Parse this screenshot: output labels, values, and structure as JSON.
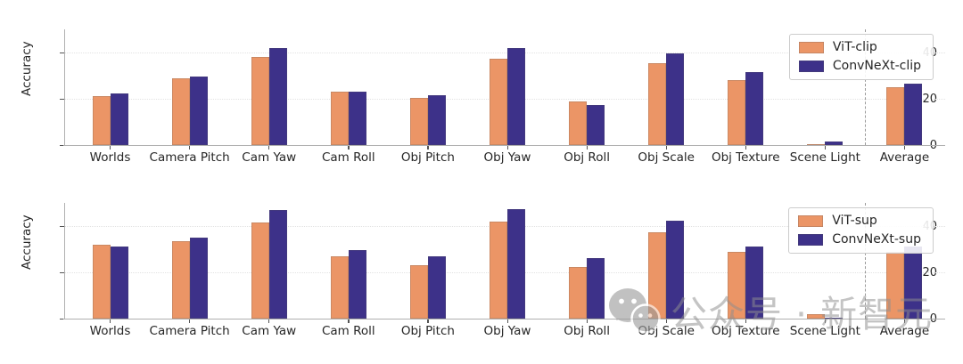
{
  "figure": {
    "watermark": {
      "icon": "wechat",
      "text": "公众号 · 新智元"
    }
  },
  "style": {
    "series1_color": "#EB9566",
    "series2_color": "#3D3189",
    "grid_color": "#e2e2e2",
    "spine_color": "#b0b0b0",
    "tick_color": "#555555",
    "text_color": "#262626",
    "separator_color": "#9a9a9a",
    "watermark_color": "#8f8f8f"
  },
  "chart_data": [
    {
      "type": "bar",
      "title": "",
      "xlabel": "",
      "ylabel": "Accuracy",
      "ylim": [
        0,
        50
      ],
      "yticks": [
        0,
        20,
        40
      ],
      "grid": true,
      "legend_position": "upper right",
      "separator_after": "Scene Light",
      "categories": [
        "Worlds",
        "Camera Pitch",
        "Cam Yaw",
        "Cam Roll",
        "Obj Pitch",
        "Obj Yaw",
        "Obj Roll",
        "Obj Scale",
        "Obj Texture",
        "Scene Light",
        "Average"
      ],
      "series": [
        {
          "name": "ViT-clip",
          "color": "#EB9566",
          "values": [
            21,
            29,
            38,
            23,
            20.5,
            37.5,
            19,
            35.5,
            28,
            0.5,
            25
          ]
        },
        {
          "name": "ConvNeXt-clip",
          "color": "#3D3189",
          "values": [
            22.5,
            29.5,
            42,
            23,
            21.5,
            42,
            17.5,
            39.5,
            31.5,
            1.5,
            26.5
          ]
        }
      ]
    },
    {
      "type": "bar",
      "title": "",
      "xlabel": "",
      "ylabel": "Accuracy",
      "ylim": [
        0,
        50
      ],
      "yticks": [
        0,
        20,
        40
      ],
      "grid": true,
      "legend_position": "upper right",
      "separator_after": "Scene Light",
      "categories": [
        "Worlds",
        "Camera Pitch",
        "Cam Yaw",
        "Cam Roll",
        "Obj Pitch",
        "Obj Yaw",
        "Obj Roll",
        "Obj Scale",
        "Obj Texture",
        "Scene Light",
        "Average"
      ],
      "series": [
        {
          "name": "ViT-sup",
          "color": "#EB9566",
          "values": [
            32,
            33.5,
            41.5,
            27,
            23,
            42,
            22.5,
            37.5,
            29,
            2,
            29
          ]
        },
        {
          "name": "ConvNeXt-sup",
          "color": "#3D3189",
          "values": [
            31,
            35,
            47,
            29.5,
            27,
            47.5,
            26,
            42.5,
            31,
            0.5,
            31
          ]
        }
      ]
    }
  ]
}
